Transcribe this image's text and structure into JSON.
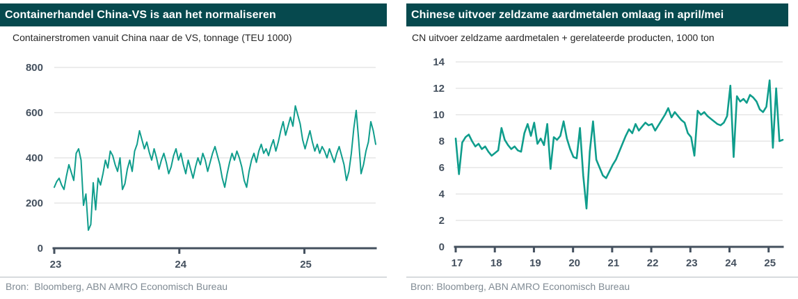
{
  "colors": {
    "header_bg": "#06494e",
    "header_text": "#ffffff",
    "line": "#0f9d8c",
    "grid": "#d8d8d8",
    "axis": "#44505e",
    "tick_label": "#44505e",
    "subtitle_text": "#262626",
    "source_text": "#7f8a93",
    "divider": "#b5bbc0"
  },
  "chart_data": [
    {
      "type": "line",
      "title": "Containerhandel China-VS is aan het normaliseren",
      "subtitle": "Containerstromen vanuit China naar de VS, tonnage (TEU 1000)",
      "source": "Bron:  Bloomberg, ABN AMRO Economisch Bureau",
      "xlabel": "",
      "ylabel": "",
      "xlim": [
        23,
        25.57
      ],
      "ylim": [
        0,
        800
      ],
      "ytick_step": 200,
      "x_ticks": [
        23,
        24,
        25
      ],
      "x_tick_labels": [
        "23",
        "24",
        "25"
      ],
      "grid": true,
      "legend": false,
      "frequency": "weekly",
      "values": [
        270,
        295,
        310,
        280,
        260,
        320,
        370,
        335,
        300,
        420,
        440,
        390,
        190,
        240,
        80,
        105,
        290,
        170,
        310,
        280,
        330,
        390,
        355,
        430,
        410,
        370,
        340,
        400,
        260,
        285,
        350,
        390,
        340,
        430,
        460,
        520,
        480,
        440,
        470,
        425,
        390,
        440,
        400,
        350,
        390,
        420,
        380,
        330,
        360,
        410,
        440,
        390,
        420,
        370,
        330,
        390,
        350,
        310,
        360,
        400,
        370,
        420,
        390,
        340,
        380,
        420,
        450,
        410,
        370,
        310,
        270,
        330,
        380,
        420,
        390,
        430,
        400,
        360,
        300,
        270,
        340,
        390,
        420,
        380,
        430,
        460,
        420,
        440,
        410,
        450,
        480,
        430,
        470,
        520,
        560,
        500,
        540,
        580,
        540,
        630,
        590,
        550,
        480,
        440,
        480,
        520,
        470,
        430,
        460,
        420,
        450,
        430,
        400,
        440,
        410,
        380,
        420,
        450,
        410,
        370,
        300,
        340,
        420,
        530,
        610,
        480,
        330,
        370,
        430,
        470,
        560,
        520,
        460
      ]
    },
    {
      "type": "line",
      "title": "Chinese uitvoer zeldzame aardmetalen omlaag in april/mei",
      "subtitle": "CN uitvoer zeldzame aardmetalen + gerelateerde producten, 1000 ton",
      "source": "Bron: Bloomberg, ABN AMRO Economisch Bureau",
      "xlabel": "",
      "ylabel": "",
      "xlim": [
        17,
        25.36
      ],
      "ylim": [
        0,
        14
      ],
      "ytick_step": 2,
      "x_ticks": [
        17,
        18,
        19,
        20,
        21,
        22,
        23,
        24,
        25
      ],
      "x_tick_labels": [
        "17",
        "18",
        "19",
        "20",
        "21",
        "22",
        "23",
        "24",
        "25"
      ],
      "grid": true,
      "legend": false,
      "frequency": "monthly",
      "values": [
        8.2,
        5.5,
        7.9,
        8.3,
        8.5,
        8.0,
        7.6,
        7.8,
        7.4,
        7.6,
        7.2,
        6.9,
        7.1,
        7.3,
        9.0,
        8.1,
        7.7,
        7.4,
        7.6,
        7.3,
        7.2,
        8.6,
        9.3,
        8.4,
        9.4,
        7.8,
        8.2,
        7.7,
        9.3,
        5.9,
        8.3,
        8.1,
        8.4,
        9.5,
        8.2,
        7.4,
        6.8,
        6.7,
        9.0,
        5.4,
        2.9,
        7.2,
        9.5,
        6.6,
        6.0,
        5.4,
        5.2,
        5.7,
        6.2,
        6.6,
        7.2,
        7.8,
        8.4,
        8.9,
        8.6,
        9.3,
        8.8,
        9.1,
        9.4,
        9.2,
        9.3,
        8.8,
        9.2,
        9.6,
        10.0,
        10.5,
        9.8,
        10.2,
        9.9,
        9.6,
        9.4,
        8.6,
        8.3,
        6.9,
        10.3,
        10.0,
        10.2,
        9.9,
        9.7,
        9.5,
        9.3,
        9.2,
        9.4,
        9.9,
        12.2,
        6.8,
        11.4,
        11.0,
        11.2,
        10.9,
        11.5,
        11.3,
        11.0,
        10.4,
        10.2,
        10.6,
        12.6,
        7.5,
        12.0,
        8.0,
        8.1
      ]
    }
  ]
}
